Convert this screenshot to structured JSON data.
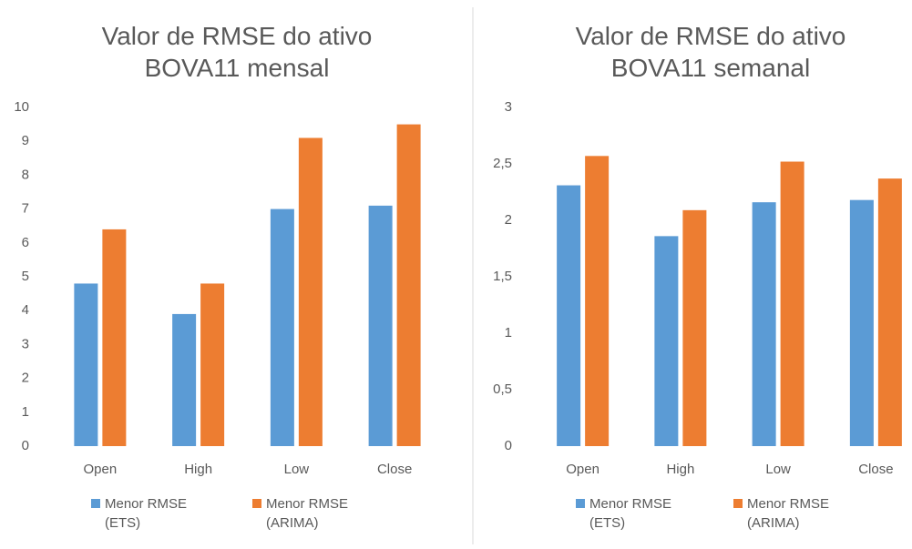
{
  "chart_data": [
    {
      "type": "bar",
      "title": "Valor de RMSE do ativo BOVA11 mensal",
      "categories": [
        "Open",
        "High",
        "Low",
        "Close"
      ],
      "series": [
        {
          "name": "Menor RMSE (ETS)",
          "color": "#5b9bd5",
          "values": [
            4.8,
            3.9,
            7.0,
            7.1
          ]
        },
        {
          "name": "Menor RMSE (ARIMA)",
          "color": "#ed7d31",
          "values": [
            6.4,
            4.8,
            9.1,
            9.5
          ]
        }
      ],
      "ylim": [
        0,
        10
      ],
      "yticks": [
        0,
        1,
        2,
        3,
        4,
        5,
        6,
        7,
        8,
        9,
        10
      ],
      "legend": "bottom"
    },
    {
      "type": "bar",
      "title": "Valor de RMSE do ativo BOVA11 semanal",
      "categories": [
        "Open",
        "High",
        "Low",
        "Close"
      ],
      "series": [
        {
          "name": "Menor RMSE (ETS)",
          "color": "#5b9bd5",
          "values": [
            2.31,
            1.86,
            2.16,
            2.18
          ]
        },
        {
          "name": "Menor RMSE (ARIMA)",
          "color": "#ed7d31",
          "values": [
            2.57,
            2.09,
            2.52,
            2.37
          ]
        }
      ],
      "ylim": [
        0,
        3
      ],
      "yticks": [
        0,
        {
          "value": 0.5,
          "label": "0,5"
        },
        1,
        {
          "value": 1.5,
          "label": "1,5"
        },
        2,
        {
          "value": 2.5,
          "label": "2,5"
        },
        3
      ],
      "legend": "bottom"
    }
  ]
}
